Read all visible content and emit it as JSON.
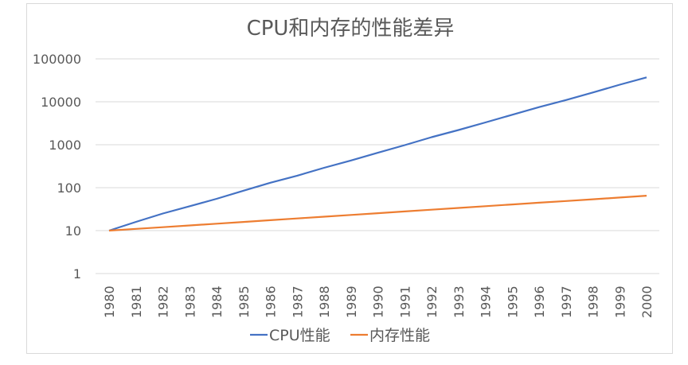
{
  "chart_data": {
    "type": "line",
    "title": "CPU和内存的性能差异",
    "xlabel": "",
    "ylabel": "",
    "yscale": "log",
    "ylim": [
      1,
      100000
    ],
    "yticks": [
      "1",
      "10",
      "100",
      "1000",
      "10000",
      "100000"
    ],
    "grid": true,
    "legend": "bottom",
    "categories": [
      "1980",
      "1981",
      "1982",
      "1983",
      "1984",
      "1985",
      "1986",
      "1987",
      "1988",
      "1989",
      "1990",
      "1991",
      "1992",
      "1993",
      "1994",
      "1995",
      "1996",
      "1997",
      "1998",
      "1999",
      "2000"
    ],
    "series": [
      {
        "name": "CPU性能",
        "color": "#4472c4",
        "values": [
          10,
          16,
          25,
          37,
          55,
          85,
          130,
          190,
          290,
          430,
          650,
          980,
          1500,
          2200,
          3300,
          5000,
          7500,
          11000,
          16500,
          25000,
          37000
        ]
      },
      {
        "name": "内存性能",
        "color": "#ed7d31",
        "values": [
          10,
          11,
          12,
          13.2,
          14.5,
          15.9,
          17.5,
          19.2,
          21.1,
          23.2,
          25.4,
          27.9,
          30.7,
          33.7,
          37,
          40.6,
          44.6,
          48.9,
          53.7,
          59,
          65
        ]
      }
    ]
  }
}
